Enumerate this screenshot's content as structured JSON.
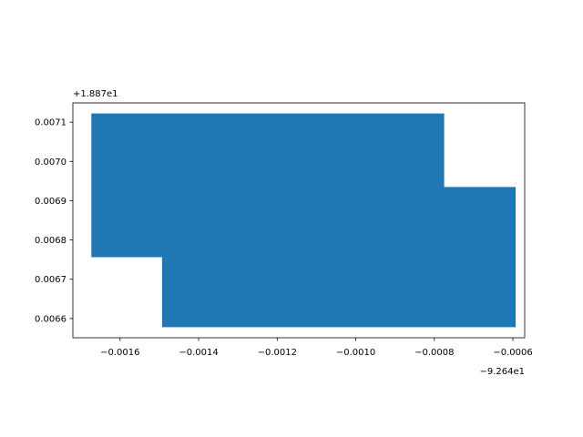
{
  "chart_data": {
    "type": "area",
    "title": "",
    "xlabel": "",
    "ylabel": "",
    "x_offset_text": "−9.264e1",
    "y_offset_text": "+1.887e1",
    "xlim": [
      -0.00172,
      -0.00057
    ],
    "ylim": [
      0.006551,
      0.007149
    ],
    "x_ticks": [
      {
        "value": -0.0016,
        "label": "−0.0016"
      },
      {
        "value": -0.0014,
        "label": "−0.0014"
      },
      {
        "value": -0.0012,
        "label": "−0.0012"
      },
      {
        "value": -0.001,
        "label": "−0.0010"
      },
      {
        "value": -0.0008,
        "label": "−0.0008"
      },
      {
        "value": -0.0006,
        "label": "−0.0006"
      }
    ],
    "y_ticks": [
      {
        "value": 0.0066,
        "label": "0.0066"
      },
      {
        "value": 0.0067,
        "label": "0.0067"
      },
      {
        "value": 0.0068,
        "label": "0.0068"
      },
      {
        "value": 0.0069,
        "label": "0.0069"
      },
      {
        "value": 0.007,
        "label": "0.0070"
      },
      {
        "value": 0.0071,
        "label": "0.0071"
      }
    ],
    "grid": false,
    "series": [
      {
        "fill": "#1f77b4",
        "polygon": [
          [
            -0.001673,
            0.007122
          ],
          [
            -0.000775,
            0.007122
          ],
          [
            -0.000775,
            0.006935
          ],
          [
            -0.000593,
            0.006935
          ],
          [
            -0.000593,
            0.006578
          ],
          [
            -0.001493,
            0.006578
          ],
          [
            -0.001493,
            0.006756
          ],
          [
            -0.001673,
            0.006756
          ]
        ]
      }
    ]
  }
}
